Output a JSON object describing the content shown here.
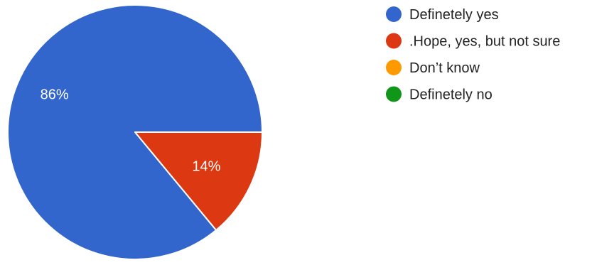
{
  "chart_data": {
    "type": "pie",
    "categories": [
      "Definetely yes",
      ".Hope, yes, but not sure",
      "Don’t know",
      "Definetely no"
    ],
    "values": [
      86,
      14,
      0,
      0
    ],
    "data_labels": [
      "86%",
      "14%",
      "",
      ""
    ],
    "colors": [
      "#3366cc",
      "#dc3912",
      "#ff9900",
      "#109618"
    ],
    "legend_position": "right"
  }
}
